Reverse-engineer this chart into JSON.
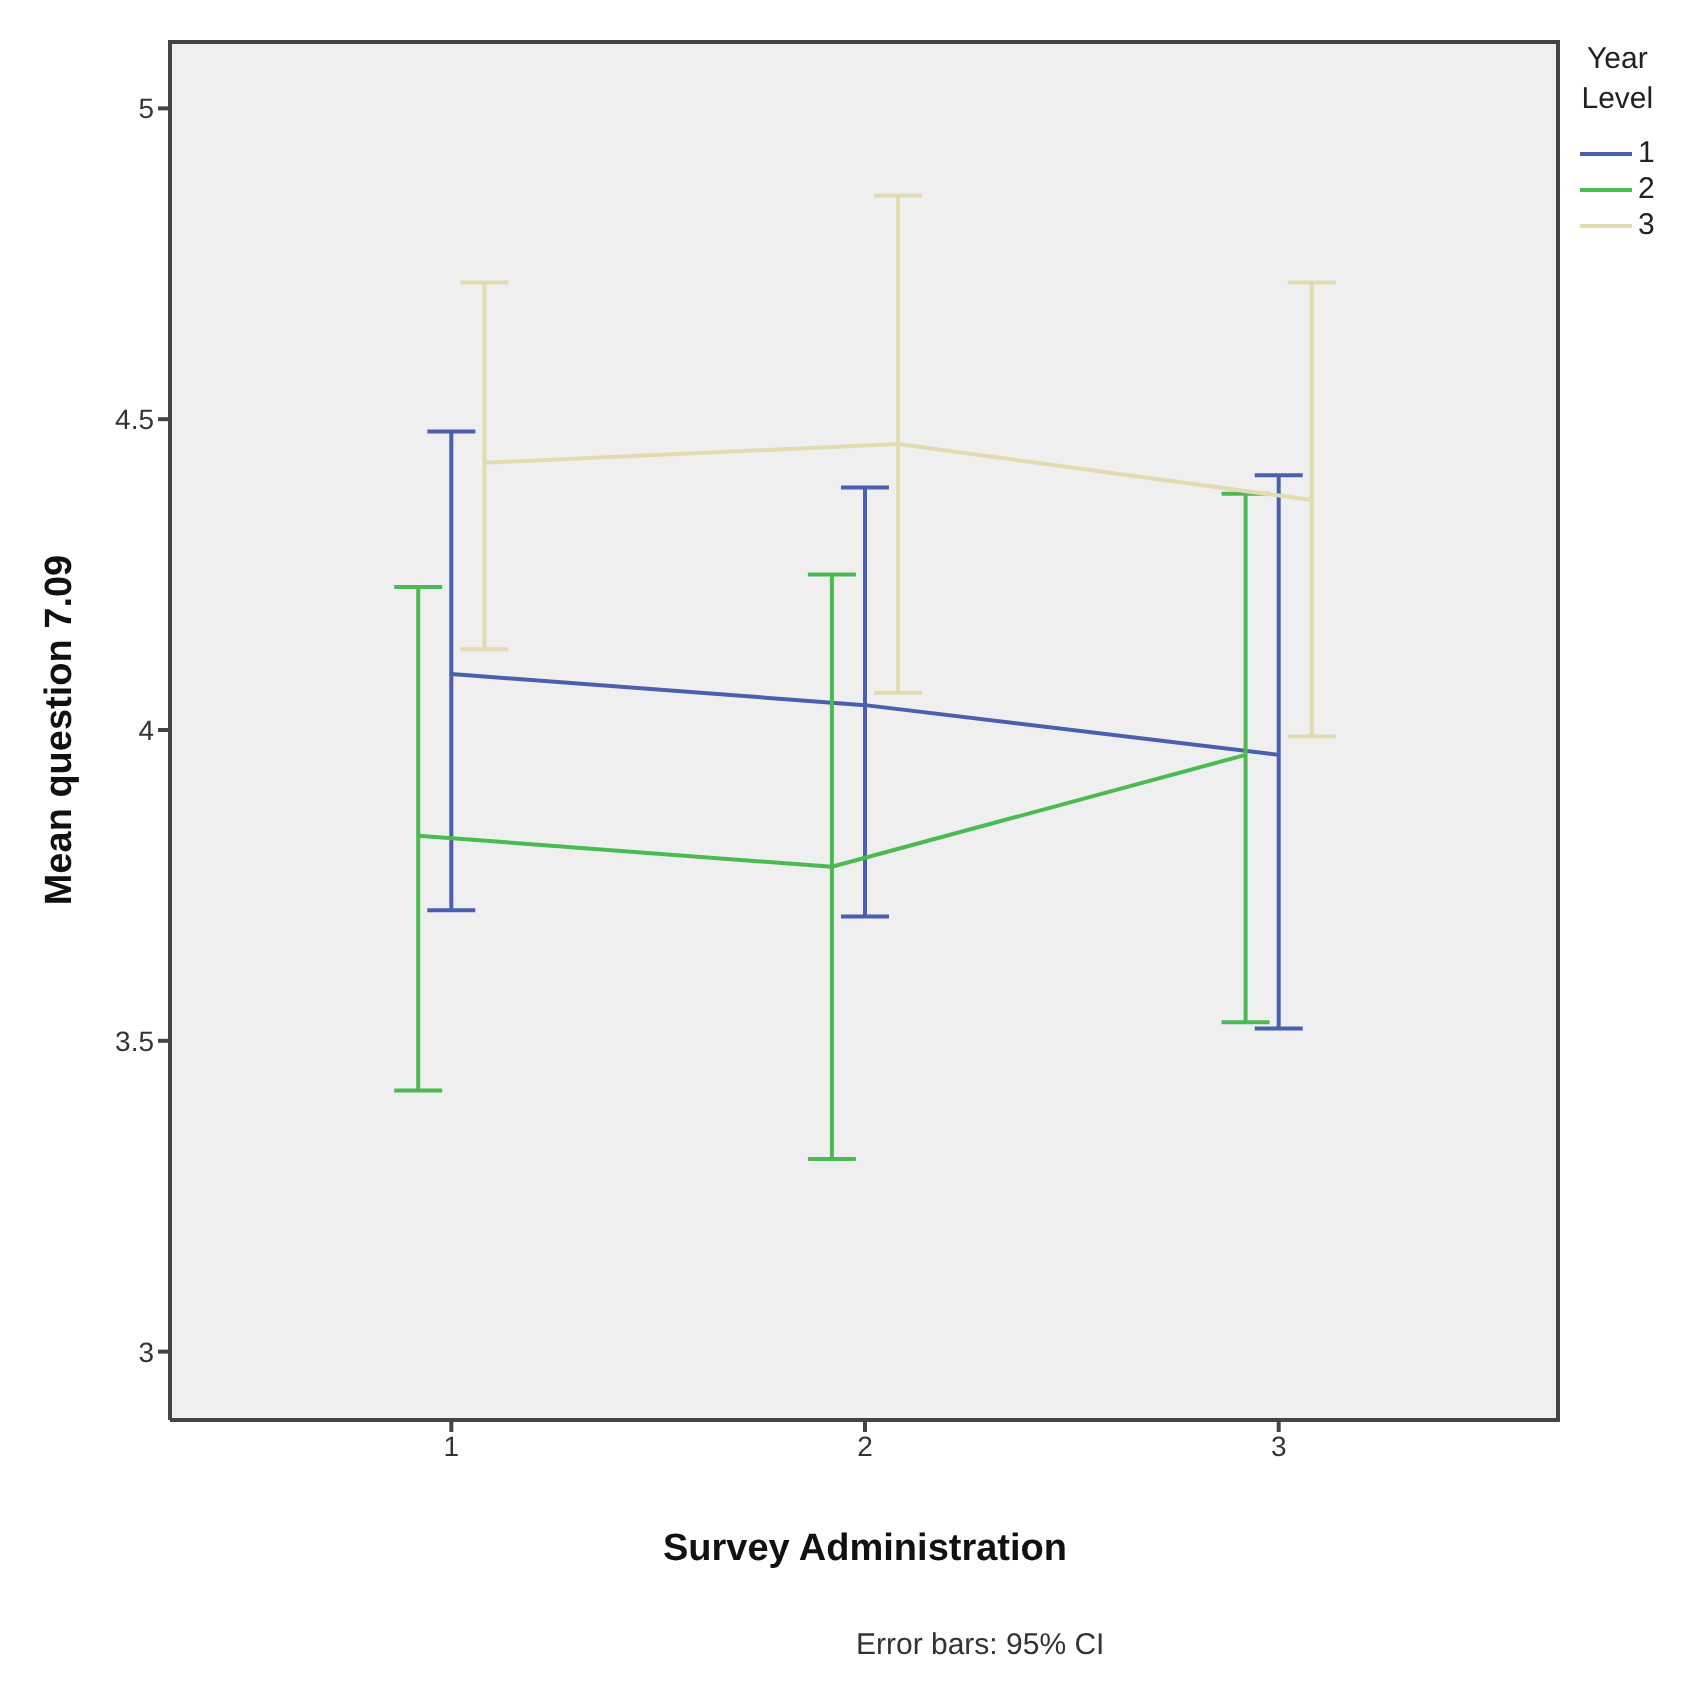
{
  "chart_data": {
    "type": "line",
    "xlabel": "Survey Administration",
    "ylabel": "Mean question 7.09",
    "legend_title": "Year Level",
    "annotations": [
      "Error bars: 95% CI"
    ],
    "xlim": [
      0.32,
      3.68
    ],
    "xticks": [
      1,
      2,
      3
    ],
    "ylim": [
      2.89,
      5.11
    ],
    "yticks": [
      3,
      3.5,
      4,
      4.5,
      5
    ],
    "grid": false,
    "legend": "top right",
    "marker": "none",
    "series": [
      {
        "name": "1",
        "color": "#4a5fae",
        "x": [
          1,
          2,
          3
        ],
        "values": [
          4.09,
          4.04,
          3.96
        ],
        "errors": [
          [
            3.71,
            4.48
          ],
          [
            3.7,
            4.39
          ],
          [
            3.52,
            4.41
          ]
        ]
      },
      {
        "name": "2",
        "color": "#4cba52",
        "x": [
          0.92,
          1.92,
          2.92
        ],
        "values": [
          3.83,
          3.78,
          3.96
        ],
        "errors": [
          [
            3.42,
            4.23
          ],
          [
            3.31,
            4.25
          ],
          [
            3.53,
            4.38
          ]
        ]
      },
      {
        "name": "3",
        "color": "#e2dbb2",
        "x": [
          1.08,
          2.08,
          3.08
        ],
        "values": [
          4.43,
          4.46,
          4.37
        ],
        "errors": [
          [
            4.13,
            4.72
          ],
          [
            4.06,
            4.86
          ],
          [
            3.99,
            4.72
          ]
        ]
      }
    ]
  }
}
